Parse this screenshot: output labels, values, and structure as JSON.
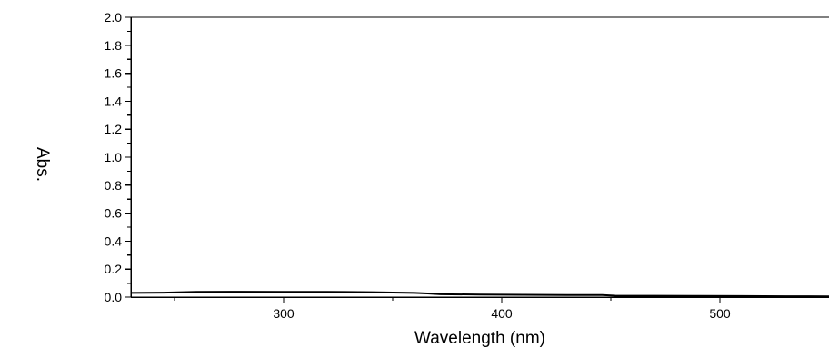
{
  "chart_data": {
    "type": "line",
    "title": "",
    "xlabel": "Wavelength (nm)",
    "ylabel": "Abs.",
    "xlim": [
      230,
      550
    ],
    "ylim": [
      0.0,
      2.0
    ],
    "x_ticks": [
      300,
      400,
      500
    ],
    "x_minor_ticks": [
      250,
      350,
      450
    ],
    "y_ticks": [
      {
        "value": 0.0,
        "label": "0.0"
      },
      {
        "value": 0.2,
        "label": "0.2"
      },
      {
        "value": 0.4,
        "label": "0.4"
      },
      {
        "value": 0.6,
        "label": "0.6"
      },
      {
        "value": 0.8,
        "label": "0.8"
      },
      {
        "value": 1.0,
        "label": "1.0"
      },
      {
        "value": 1.2,
        "label": "1.2"
      },
      {
        "value": 1.4,
        "label": "1.4"
      },
      {
        "value": 1.6,
        "label": "1.6"
      },
      {
        "value": 1.8,
        "label": "1.8"
      },
      {
        "value": 2.0,
        "label": "2.0"
      }
    ],
    "grid": false,
    "series": [
      {
        "color": "#000000",
        "x": [
          230,
          245,
          260,
          280,
          300,
          320,
          340,
          360,
          366,
          372,
          390,
          410,
          430,
          446,
          452,
          470,
          490,
          510,
          530,
          550
        ],
        "y": [
          0.03,
          0.032,
          0.037,
          0.038,
          0.037,
          0.037,
          0.035,
          0.03,
          0.026,
          0.02,
          0.018,
          0.016,
          0.015,
          0.014,
          0.01,
          0.009,
          0.008,
          0.007,
          0.006,
          0.005
        ]
      }
    ]
  }
}
